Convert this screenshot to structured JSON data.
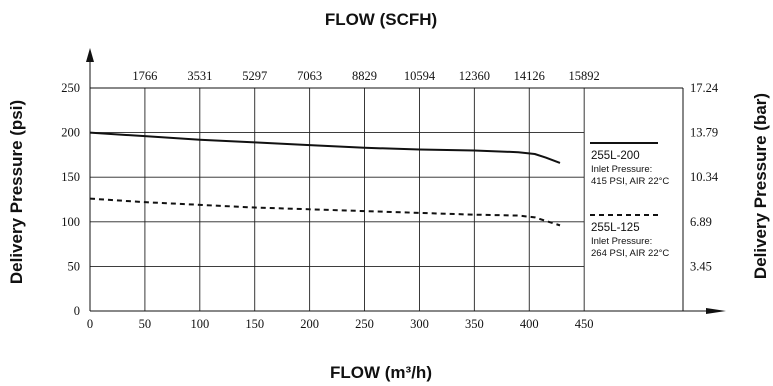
{
  "chart_data": {
    "type": "line",
    "title_top": "FLOW (SCFH)",
    "xlabel": "FLOW (m³/h)",
    "ylabel_left": "Delivery Pressure (psi)",
    "ylabel_right": "Delivery Pressure (bar)",
    "x_ticks": [
      "0",
      "50",
      "100",
      "150",
      "200",
      "250",
      "300",
      "350",
      "400",
      "450"
    ],
    "x_top_ticks": [
      "1766",
      "3531",
      "5297",
      "7063",
      "8829",
      "10594",
      "12360",
      "14126",
      "15892"
    ],
    "y_ticks": [
      "0",
      "50",
      "100",
      "150",
      "200",
      "250"
    ],
    "y_right_ticks": [
      "3.45",
      "6.89",
      "10.34",
      "13.79",
      "17.24"
    ],
    "xlim": [
      0,
      540
    ],
    "ylim": [
      0,
      250
    ],
    "grid": true,
    "series": [
      {
        "name": "255L-200",
        "note_line1": "Inlet Pressure:",
        "note_line2": "415 PSI, AIR 22°C",
        "style": "solid",
        "color": "#111111",
        "x": [
          0,
          50,
          100,
          150,
          200,
          250,
          300,
          350,
          390,
          405,
          415,
          428
        ],
        "y": [
          200,
          196,
          192,
          189,
          186,
          183,
          181,
          180,
          178,
          176,
          172,
          166
        ]
      },
      {
        "name": "255L-125",
        "note_line1": "Inlet Pressure:",
        "note_line2": "264 PSI, AIR 22°C",
        "style": "dashed",
        "color": "#111111",
        "x": [
          0,
          50,
          100,
          150,
          200,
          250,
          300,
          350,
          390,
          405,
          415,
          428
        ],
        "y": [
          126,
          122,
          119,
          116,
          114,
          112,
          110,
          108,
          107,
          105,
          101,
          96
        ]
      }
    ]
  }
}
